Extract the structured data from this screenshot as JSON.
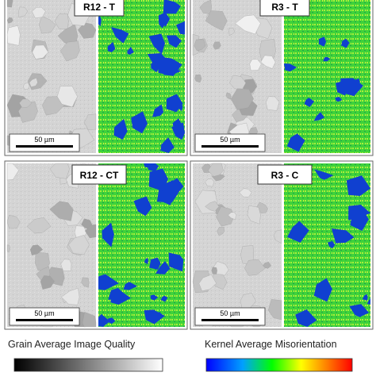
{
  "panels": [
    {
      "label": "R12 - T",
      "scale_bar": "50 µm"
    },
    {
      "label": "R3 - T",
      "scale_bar": "50 µm"
    },
    {
      "label": "R12 - CT",
      "scale_bar": "50 µm"
    },
    {
      "label": "R3 - C",
      "scale_bar": "50 µm"
    }
  ],
  "legends": [
    {
      "title": "Grain Average Image Quality"
    },
    {
      "title": "Kernel Average Misorientation"
    }
  ]
}
